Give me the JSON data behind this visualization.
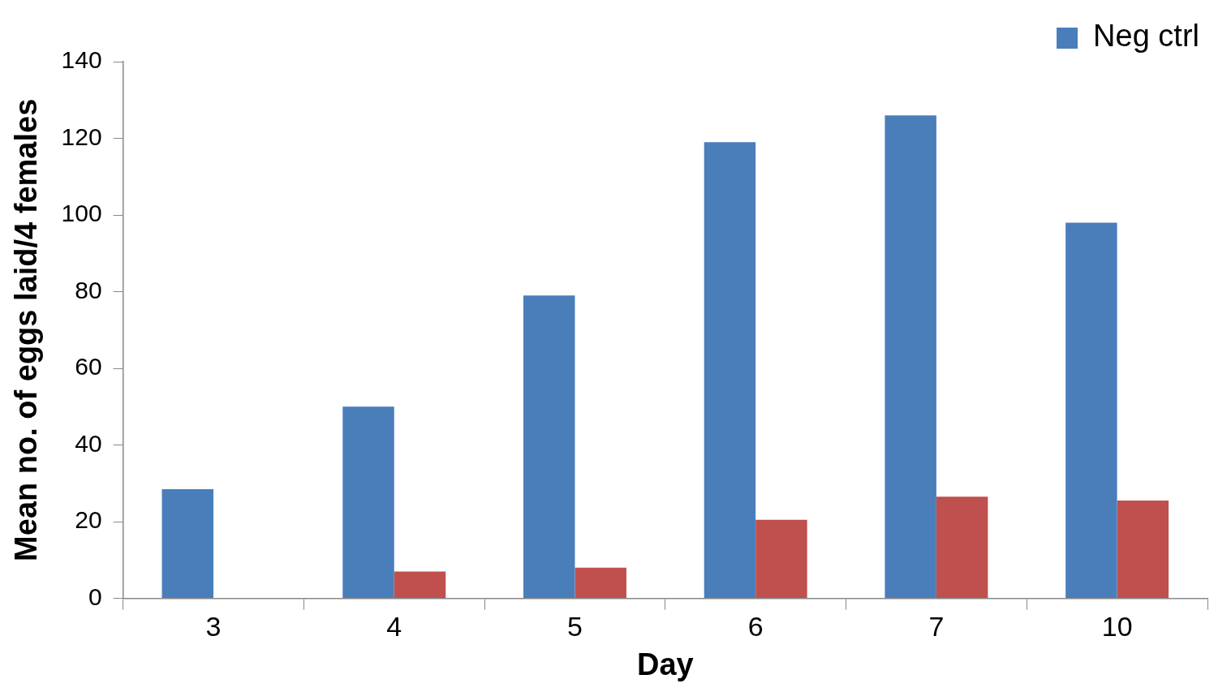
{
  "chart_data": {
    "type": "bar",
    "xlabel": "Day",
    "ylabel": "Mean no. of eggs laid/4 females",
    "categories": [
      "3",
      "4",
      "5",
      "6",
      "7",
      "10"
    ],
    "series": [
      {
        "name": "Neg ctrl",
        "color": "#4a7ebb",
        "values": [
          28.5,
          50,
          79,
          119,
          126,
          98
        ]
      },
      {
        "color": "#c0504d",
        "values": [
          0,
          7,
          8,
          20.5,
          26.5,
          25.5
        ]
      }
    ],
    "ylim": [
      0,
      140
    ],
    "yticks": [
      0,
      20,
      40,
      60,
      80,
      100,
      120,
      140
    ],
    "grid": false,
    "legend": "top right"
  }
}
